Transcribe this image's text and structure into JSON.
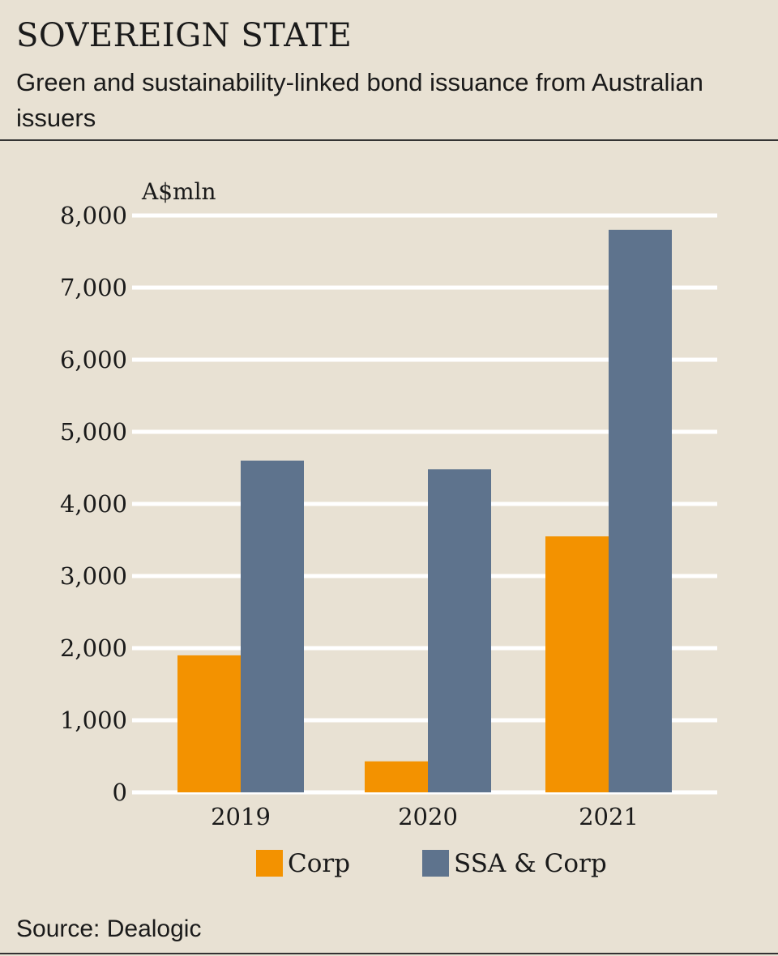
{
  "header": {
    "title": "SOVEREIGN STATE",
    "subtitle": "Green and sustainability-linked bond issuance from Australian issuers"
  },
  "footer": {
    "source": "Source: Dealogic"
  },
  "colors": {
    "background": "#e8e1d3",
    "corp": "#f39200",
    "ssa_corp": "#5e738d",
    "grid": "#ffffff"
  },
  "chart_data": {
    "type": "bar",
    "title": "SOVEREIGN STATE",
    "subtitle": "Green and sustainability-linked bond issuance from Australian issuers",
    "unit_label": "A$mln",
    "categories": [
      "2019",
      "2020",
      "2021"
    ],
    "series": [
      {
        "name": "Corp",
        "values": [
          1900,
          430,
          3550
        ]
      },
      {
        "name": "SSA & Corp",
        "values": [
          4600,
          4480,
          7800
        ]
      }
    ],
    "ylim": [
      0,
      8000
    ],
    "yticks": [
      0,
      1000,
      2000,
      3000,
      4000,
      5000,
      6000,
      7000,
      8000
    ],
    "ytick_labels": [
      "0",
      "1,000",
      "2,000",
      "3,000",
      "4,000",
      "5,000",
      "6,000",
      "7,000",
      "8,000"
    ],
    "grid": true,
    "legend_position": "bottom"
  }
}
